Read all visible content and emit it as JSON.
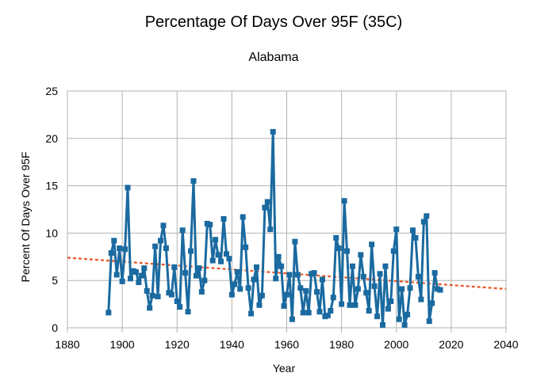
{
  "chart_data": {
    "type": "line",
    "title": "Percentage Of Days Over 95F (35C)",
    "subtitle": "Alabama",
    "xlabel": "Year",
    "ylabel": "Percent Of Days Over 95F",
    "xlim": [
      1880,
      2040
    ],
    "ylim": [
      0,
      25
    ],
    "xticks": [
      1880,
      1900,
      1920,
      1940,
      1960,
      1980,
      2000,
      2020,
      2040
    ],
    "yticks": [
      0,
      5,
      10,
      15,
      20,
      25
    ],
    "grid": true,
    "legend": "none",
    "series": [
      {
        "color": "#1a6aa0",
        "marker": "square",
        "x": [
          1895,
          1896,
          1897,
          1898,
          1899,
          1900,
          1901,
          1902,
          1903,
          1904,
          1905,
          1906,
          1907,
          1908,
          1909,
          1910,
          1911,
          1912,
          1913,
          1914,
          1915,
          1916,
          1917,
          1918,
          1919,
          1920,
          1921,
          1922,
          1923,
          1924,
          1925,
          1926,
          1927,
          1928,
          1929,
          1930,
          1931,
          1932,
          1933,
          1934,
          1935,
          1936,
          1937,
          1938,
          1939,
          1940,
          1941,
          1942,
          1943,
          1944,
          1945,
          1946,
          1947,
          1948,
          1949,
          1950,
          1951,
          1952,
          1953,
          1954,
          1955,
          1956,
          1957,
          1958,
          1959,
          1960,
          1961,
          1962,
          1963,
          1964,
          1965,
          1966,
          1967,
          1968,
          1969,
          1970,
          1971,
          1972,
          1973,
          1974,
          1975,
          1976,
          1977,
          1978,
          1979,
          1980,
          1981,
          1982,
          1983,
          1984,
          1985,
          1986,
          1987,
          1988,
          1989,
          1990,
          1991,
          1992,
          1993,
          1994,
          1995,
          1996,
          1997,
          1998,
          1999,
          2000,
          2001,
          2002,
          2003,
          2004,
          2005,
          2006,
          2007,
          2008,
          2009,
          2010,
          2011,
          2012,
          2013,
          2014,
          2015,
          2016
        ],
        "y": [
          1.6,
          7.9,
          9.2,
          5.6,
          8.4,
          4.9,
          8.3,
          14.8,
          5.2,
          6.0,
          5.9,
          4.8,
          5.5,
          6.3,
          3.9,
          2.1,
          3.4,
          8.6,
          3.3,
          9.2,
          10.8,
          8.4,
          3.7,
          3.5,
          6.4,
          2.8,
          2.2,
          10.3,
          5.8,
          1.7,
          8.1,
          15.5,
          5.5,
          6.3,
          3.8,
          5.0,
          11.0,
          10.9,
          7.1,
          9.3,
          7.7,
          7.0,
          11.5,
          7.8,
          7.3,
          3.5,
          4.6,
          5.9,
          4.1,
          11.7,
          8.5,
          4.2,
          1.5,
          5.1,
          6.4,
          2.4,
          3.4,
          12.7,
          13.3,
          10.4,
          20.7,
          5.2,
          7.5,
          6.5,
          2.3,
          3.5,
          5.6,
          0.9,
          9.1,
          5.6,
          4.2,
          1.6,
          3.9,
          1.6,
          5.7,
          5.8,
          3.8,
          1.7,
          5.1,
          1.2,
          1.3,
          1.8,
          3.2,
          9.5,
          8.4,
          2.5,
          13.4,
          8.1,
          2.4,
          6.5,
          2.4,
          4.1,
          7.7,
          5.4,
          3.7,
          1.8,
          8.8,
          4.4,
          1.2,
          5.7,
          0.3,
          6.5,
          2.0,
          2.8,
          8.1,
          10.4,
          0.9,
          4.1,
          0.3,
          1.4,
          4.2,
          10.3,
          9.5,
          5.4,
          3.0,
          11.2,
          11.8,
          0.7,
          2.6,
          5.8,
          4.1,
          4.0
        ]
      }
    ],
    "trendline": {
      "color": "#e8562a",
      "style": "dotted",
      "x": [
        1880,
        2040
      ],
      "y": [
        7.4,
        4.1
      ]
    }
  }
}
